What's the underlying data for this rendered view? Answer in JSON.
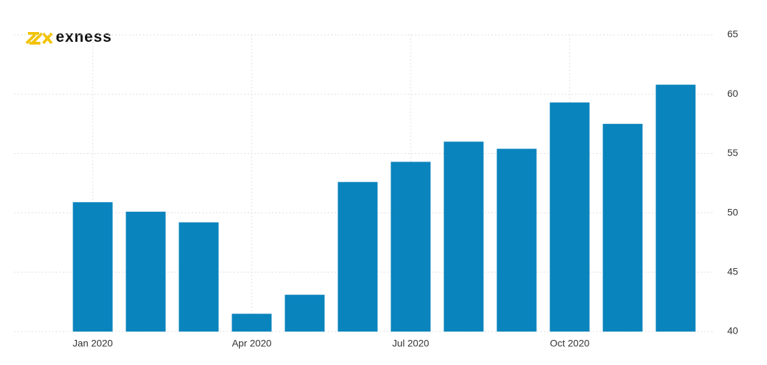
{
  "chart_data": {
    "type": "bar",
    "logo_text": "exness",
    "categories": [
      "Jan 2020",
      null,
      null,
      "Apr 2020",
      null,
      null,
      "Jul 2020",
      null,
      null,
      "Oct 2020",
      null,
      null
    ],
    "values": [
      50.9,
      50.1,
      49.2,
      41.5,
      43.1,
      52.6,
      54.3,
      56.0,
      55.4,
      59.3,
      57.5,
      60.8
    ],
    "color": "#0a84bd",
    "ylim": [
      40,
      65
    ],
    "yticks": [
      40,
      45,
      50,
      55,
      60,
      65
    ],
    "grid": true,
    "y_axis_side": "right"
  }
}
